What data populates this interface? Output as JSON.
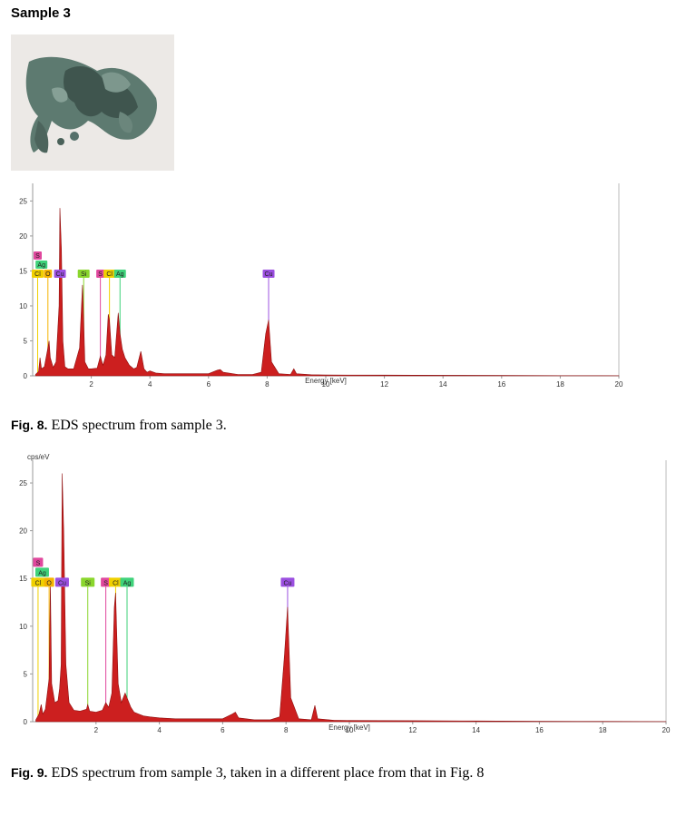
{
  "heading": "Sample 3",
  "photo": {
    "alt": "corroded copper-alloy sample",
    "palette": [
      "#e9e6e3",
      "#4f6a62",
      "#6f8c82",
      "#3b4e48"
    ]
  },
  "captions": [
    {
      "label": "Fig. 8.",
      "text": " EDS spectrum from sample 3."
    },
    {
      "label": "Fig. 9.",
      "text": " EDS spectrum from sample 3, taken in a different place from that in Fig. 8"
    }
  ],
  "chart_data": [
    {
      "type": "line",
      "xlabel": "Energy [keV]",
      "ylabel": "",
      "xlim": [
        0,
        20
      ],
      "ylim": [
        0,
        27
      ],
      "xticks": [
        2,
        4,
        6,
        8,
        10,
        12,
        14,
        16,
        18,
        20
      ],
      "yticks": [
        0,
        5,
        10,
        15,
        20,
        25
      ],
      "grid": false,
      "fill_color": "#cc1f1f",
      "series": [
        {
          "x": [
            0.1,
            0.2,
            0.25,
            0.27,
            0.3,
            0.4,
            0.52,
            0.56,
            0.6,
            0.7,
            0.8,
            0.9,
            0.93,
            0.98,
            1.03,
            1.1,
            1.2,
            1.4,
            1.6,
            1.7,
            1.74,
            1.78,
            1.9,
            2.0,
            2.2,
            2.31,
            2.4,
            2.5,
            2.58,
            2.62,
            2.7,
            2.8,
            2.92,
            2.98,
            3.06,
            3.15,
            3.3,
            3.45,
            3.55,
            3.69,
            3.8,
            3.9,
            4.0,
            4.2,
            4.5,
            5.0,
            5.5,
            6.0,
            6.3,
            6.4,
            6.5,
            7.0,
            7.5,
            7.8,
            7.95,
            8.05,
            8.15,
            8.4,
            8.8,
            8.91,
            9.0,
            9.5,
            10,
            12,
            14,
            16,
            18,
            19.3,
            20
          ],
          "y": [
            0.2,
            0.6,
            2.6,
            2.0,
            1.0,
            1.3,
            4.0,
            5.0,
            2.6,
            1.2,
            2.0,
            10.0,
            24.0,
            18.0,
            5.0,
            1.3,
            1.0,
            1.0,
            4.0,
            13.0,
            8.0,
            2.0,
            1.0,
            1.0,
            1.1,
            2.8,
            1.5,
            3.0,
            8.8,
            8.0,
            3.0,
            2.6,
            9.0,
            6.0,
            3.8,
            2.6,
            1.5,
            1.0,
            1.2,
            3.5,
            1.0,
            0.5,
            0.7,
            0.4,
            0.3,
            0.3,
            0.3,
            0.3,
            0.8,
            0.9,
            0.5,
            0.2,
            0.2,
            0.5,
            6.0,
            8.0,
            2.0,
            0.3,
            0.2,
            1.0,
            0.3,
            0.15,
            0.12,
            0.1,
            0.08,
            0.05,
            0.03,
            0.02,
            0.01
          ]
        }
      ],
      "element_labels": [
        {
          "element": "S",
          "energy": 0.17,
          "row": 3,
          "color": "#e0479d"
        },
        {
          "element": "Ag",
          "energy": 0.3,
          "row": 2,
          "color": "#3fd27a"
        },
        {
          "element": "Cl",
          "energy": 0.17,
          "row": 1,
          "color": "#f0d000"
        },
        {
          "element": "O",
          "energy": 0.52,
          "row": 1,
          "color": "#f5b400"
        },
        {
          "element": "Cu",
          "energy": 0.93,
          "row": 1,
          "color": "#9b4fe0"
        },
        {
          "element": "Si",
          "energy": 1.74,
          "row": 1,
          "color": "#8ad62c"
        },
        {
          "element": "S",
          "energy": 2.31,
          "row": 1,
          "color": "#e0479d"
        },
        {
          "element": "Cl",
          "energy": 2.62,
          "row": 1,
          "color": "#f0d000"
        },
        {
          "element": "Ag",
          "energy": 2.98,
          "row": 1,
          "color": "#3fd27a"
        },
        {
          "element": "Cu",
          "energy": 8.05,
          "row": 1,
          "color": "#9b4fe0"
        }
      ]
    },
    {
      "type": "line",
      "xlabel": "Energy [keV]",
      "ylabel": "cps/eV",
      "xlim": [
        0,
        20
      ],
      "ylim": [
        0,
        27
      ],
      "xticks": [
        2,
        4,
        6,
        8,
        10,
        12,
        14,
        16,
        18,
        20
      ],
      "yticks": [
        0,
        5,
        10,
        15,
        20,
        25
      ],
      "grid": false,
      "fill_color": "#cc1f1f",
      "series": [
        {
          "x": [
            0.1,
            0.2,
            0.27,
            0.32,
            0.4,
            0.52,
            0.56,
            0.6,
            0.7,
            0.8,
            0.85,
            0.9,
            0.93,
            0.98,
            1.05,
            1.15,
            1.3,
            1.5,
            1.7,
            1.74,
            1.8,
            2.0,
            2.2,
            2.31,
            2.4,
            2.5,
            2.58,
            2.62,
            2.7,
            2.8,
            2.92,
            2.98,
            3.1,
            3.2,
            3.35,
            3.5,
            3.7,
            4.0,
            4.5,
            5.0,
            6.0,
            6.3,
            6.4,
            6.5,
            7.0,
            7.5,
            7.8,
            7.95,
            8.05,
            8.15,
            8.4,
            8.8,
            8.91,
            9.0,
            9.5,
            10,
            12,
            14,
            16,
            18,
            19.3,
            20
          ],
          "y": [
            0.2,
            0.8,
            1.8,
            0.8,
            1.3,
            4.5,
            14.5,
            4.0,
            2.0,
            2.2,
            3.5,
            6.0,
            26.0,
            20.0,
            6.0,
            2.0,
            1.2,
            1.1,
            1.3,
            1.8,
            1.1,
            1.0,
            1.2,
            2.0,
            1.5,
            3.0,
            12.0,
            13.5,
            4.0,
            2.0,
            3.0,
            2.5,
            1.5,
            1.0,
            0.8,
            0.6,
            0.5,
            0.4,
            0.3,
            0.3,
            0.3,
            0.8,
            1.0,
            0.4,
            0.2,
            0.2,
            0.5,
            7.0,
            12.0,
            2.5,
            0.3,
            0.2,
            1.7,
            0.3,
            0.15,
            0.12,
            0.1,
            0.08,
            0.05,
            0.03,
            0.02,
            0.01
          ]
        }
      ],
      "element_labels": [
        {
          "element": "S",
          "energy": 0.17,
          "row": 3,
          "color": "#e0479d"
        },
        {
          "element": "Ag",
          "energy": 0.3,
          "row": 2,
          "color": "#3fd27a"
        },
        {
          "element": "Cl",
          "energy": 0.17,
          "row": 1,
          "color": "#f0d000"
        },
        {
          "element": "O",
          "energy": 0.52,
          "row": 1,
          "color": "#f5b400"
        },
        {
          "element": "Cu",
          "energy": 0.93,
          "row": 1,
          "color": "#9b4fe0"
        },
        {
          "element": "Si",
          "energy": 1.74,
          "row": 1,
          "color": "#8ad62c"
        },
        {
          "element": "S",
          "energy": 2.31,
          "row": 1,
          "color": "#e0479d"
        },
        {
          "element": "Cl",
          "energy": 2.62,
          "row": 1,
          "color": "#f0d000"
        },
        {
          "element": "Ag",
          "energy": 2.98,
          "row": 1,
          "color": "#3fd27a"
        },
        {
          "element": "Cu",
          "energy": 8.05,
          "row": 1,
          "color": "#9b4fe0"
        }
      ]
    }
  ]
}
